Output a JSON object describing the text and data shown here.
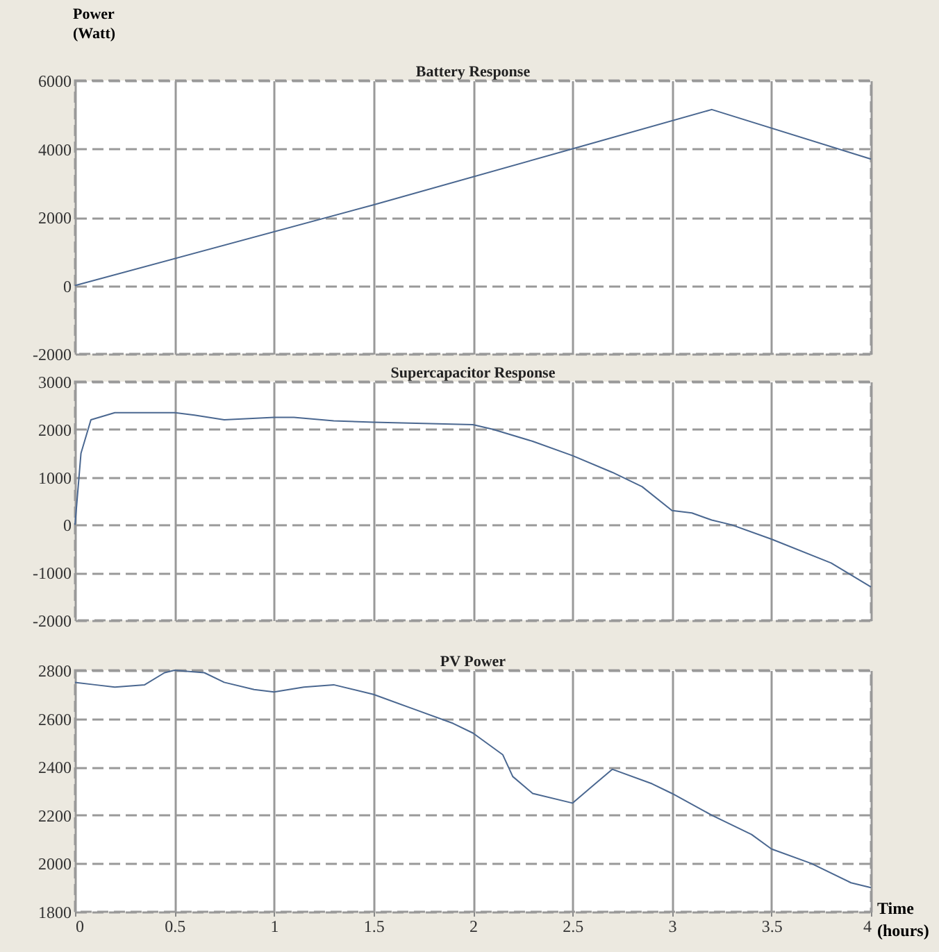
{
  "chart_data": [
    {
      "type": "line",
      "title": "Battery Response",
      "ylabel": "Power (Watt)",
      "xlim": [
        0,
        4
      ],
      "xticks": [
        0,
        0.5,
        1,
        1.5,
        2,
        2.5,
        3,
        3.5,
        4
      ],
      "ylim": [
        -2000,
        6000
      ],
      "yticks": [
        -2000,
        0,
        2000,
        4000,
        6000
      ],
      "grid": true,
      "tick_labels": "y",
      "series": [
        {
          "color": "#4a6790",
          "x": [
            0,
            1.5,
            2.5,
            3.2,
            4
          ],
          "values": [
            0,
            2360,
            4000,
            5150,
            3700
          ]
        }
      ]
    },
    {
      "type": "line",
      "title": "Supercapacitor Response",
      "xlim": [
        0,
        4
      ],
      "xticks": [
        0,
        0.5,
        1,
        1.5,
        2,
        2.5,
        3,
        3.5,
        4
      ],
      "ylim": [
        -2000,
        3000
      ],
      "yticks": [
        -2000,
        -1000,
        0,
        1000,
        2000,
        3000
      ],
      "grid": true,
      "tick_labels": "y",
      "series": [
        {
          "color": "#4a6790",
          "x": [
            0,
            0.03,
            0.08,
            0.2,
            0.5,
            0.6,
            0.75,
            1,
            1.1,
            1.3,
            1.5,
            2,
            2.1,
            2.3,
            2.5,
            2.7,
            2.85,
            3,
            3.1,
            3.2,
            3.3,
            3.5,
            3.8,
            4
          ],
          "values": [
            0,
            1500,
            2200,
            2350,
            2350,
            2300,
            2200,
            2250,
            2250,
            2180,
            2150,
            2100,
            2000,
            1750,
            1450,
            1100,
            800,
            300,
            250,
            100,
            0,
            -300,
            -800,
            -1300
          ]
        }
      ]
    },
    {
      "type": "line",
      "title": "PV Power",
      "xlabel": "Time (hours)",
      "xlim": [
        0,
        4
      ],
      "xticks": [
        0,
        0.5,
        1,
        1.5,
        2,
        2.5,
        3,
        3.5,
        4
      ],
      "ylim": [
        1800,
        2800
      ],
      "yticks": [
        1800,
        2000,
        2200,
        2400,
        2600,
        2800
      ],
      "grid": true,
      "series": [
        {
          "color": "#4a6790",
          "x": [
            0,
            0.1,
            0.2,
            0.35,
            0.45,
            0.5,
            0.65,
            0.75,
            0.9,
            1,
            1.15,
            1.3,
            1.5,
            1.7,
            1.9,
            2,
            2.15,
            2.2,
            2.3,
            2.5,
            2.6,
            2.7,
            2.9,
            3,
            3.2,
            3.4,
            3.5,
            3.7,
            3.9,
            4
          ],
          "values": [
            2750,
            2740,
            2730,
            2740,
            2790,
            2800,
            2790,
            2750,
            2720,
            2710,
            2730,
            2740,
            2700,
            2640,
            2580,
            2540,
            2450,
            2360,
            2290,
            2250,
            2320,
            2390,
            2330,
            2290,
            2200,
            2120,
            2060,
            2000,
            1920,
            1900
          ]
        }
      ]
    }
  ]
}
